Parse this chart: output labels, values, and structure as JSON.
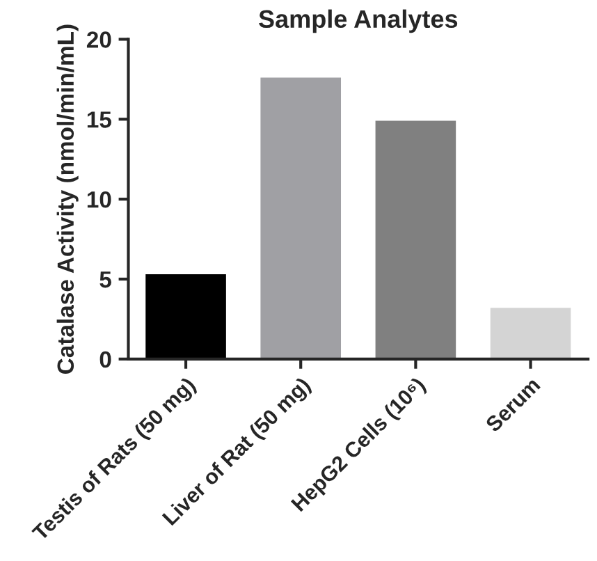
{
  "chart_data": {
    "type": "bar",
    "title": "Sample Analytes",
    "ylabel": "Catalase Activity (nmol/min/mL)",
    "categories": [
      "Testis of Rats (50 mg)",
      "Liver of Rat (50 mg)",
      "HepG2 Cells (10⁶)",
      "Serum"
    ],
    "values": [
      5.3,
      17.6,
      14.9,
      3.2
    ],
    "colors": [
      "#000000",
      "#a0a0a4",
      "#808080",
      "#d4d4d4"
    ],
    "ylim": [
      0,
      20
    ],
    "yticks": [
      0,
      5,
      10,
      15,
      20
    ],
    "grid": false,
    "legend": false
  }
}
